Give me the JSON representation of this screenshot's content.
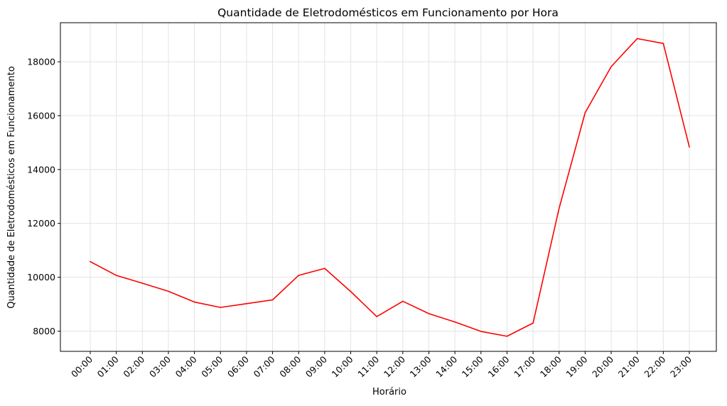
{
  "chart_data": {
    "type": "line",
    "title": "Quantidade de Eletrodomésticos em Funcionamento por Hora",
    "xlabel": "Horário",
    "ylabel": "Quantidade de Eletrodomésticos em Funcionamento",
    "categories": [
      "00:00",
      "01:00",
      "02:00",
      "03:00",
      "04:00",
      "05:00",
      "06:00",
      "07:00",
      "08:00",
      "09:00",
      "10:00",
      "11:00",
      "12:00",
      "13:00",
      "14:00",
      "15:00",
      "16:00",
      "17:00",
      "18:00",
      "19:00",
      "20:00",
      "21:00",
      "22:00",
      "23:00"
    ],
    "series": [
      {
        "color": "#ff0000",
        "values": [
          10580,
          10070,
          9780,
          9480,
          9080,
          8880,
          9020,
          9160,
          10070,
          10330,
          9470,
          8540,
          9110,
          8650,
          8340,
          7990,
          7810,
          8300,
          12560,
          16110,
          17820,
          18860,
          18680,
          14840
        ]
      }
    ],
    "yticks": [
      8000,
      10000,
      12000,
      14000,
      16000,
      18000
    ],
    "ylim": [
      7250,
      19450
    ],
    "grid": true,
    "x_tick_rotation": 45
  }
}
